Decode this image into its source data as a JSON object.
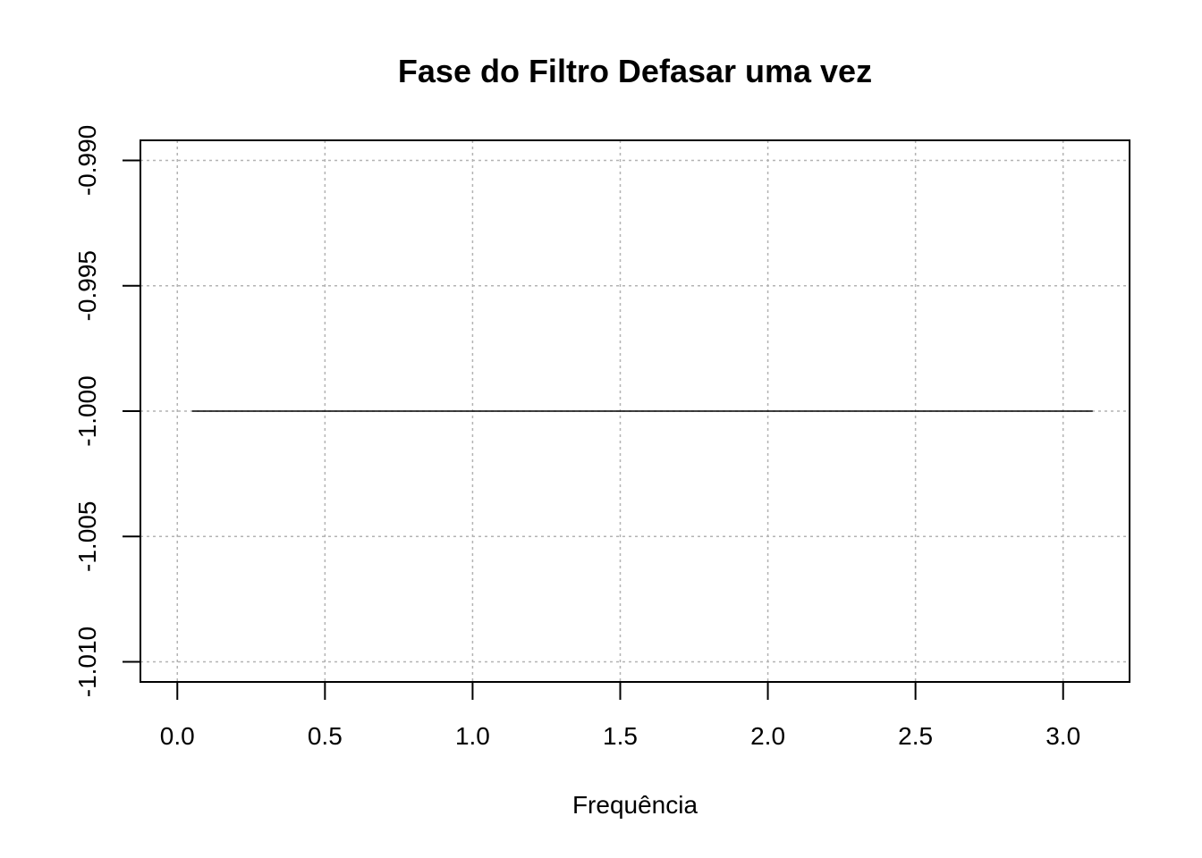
{
  "chart_data": {
    "type": "line",
    "title": "Fase do Filtro Defasar uma vez",
    "xlabel": "Frequência",
    "ylabel": "",
    "xlim": [
      -0.125,
      3.225
    ],
    "ylim": [
      -1.0108,
      -0.9892
    ],
    "xticks": [
      0.0,
      0.5,
      1.0,
      1.5,
      2.0,
      2.5,
      3.0
    ],
    "xtick_labels": [
      "0.0",
      "0.5",
      "1.0",
      "1.5",
      "2.0",
      "2.5",
      "3.0"
    ],
    "yticks": [
      -1.01,
      -1.005,
      -1.0,
      -0.995,
      -0.99
    ],
    "ytick_labels": [
      "-1.010",
      "-1.005",
      "-1.000",
      "-0.995",
      "-0.990"
    ],
    "grid": true,
    "series": [
      {
        "x": [
          0.05,
          3.1
        ],
        "y": [
          -1.0,
          -1.0
        ],
        "color": "#000000"
      }
    ]
  }
}
